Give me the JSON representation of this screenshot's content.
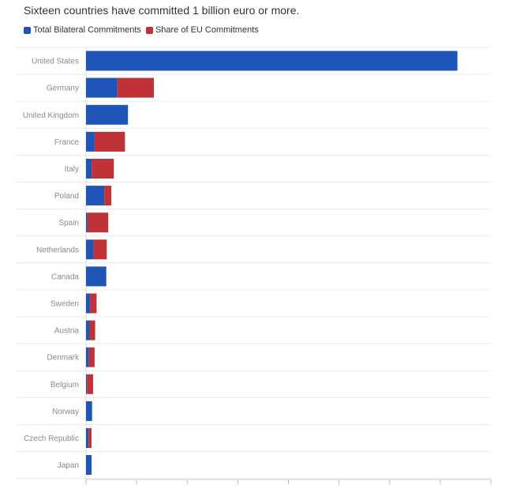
{
  "chart_data": {
    "type": "bar",
    "orientation": "horizontal",
    "stacked": true,
    "title": "Sixteen countries have committed 1 billion euro or more.",
    "categories": [
      "United States",
      "Germany",
      "United Kingdom",
      "France",
      "Italy",
      "Poland",
      "Spain",
      "Netherlands",
      "Canada",
      "Sweden",
      "Austria",
      "Denmark",
      "Belgium",
      "Norway",
      "Czech Republic",
      "Japan"
    ],
    "series": [
      {
        "name": "Total Bilateral Commitments",
        "color": "#1f55b8",
        "values": [
          73.4,
          6.2,
          8.3,
          1.7,
          1.1,
          3.6,
          0.3,
          1.5,
          4.0,
          0.8,
          0.7,
          0.6,
          0.2,
          1.2,
          0.5,
          1.1
        ]
      },
      {
        "name": "Share of EU Commitments",
        "color": "#bf3238",
        "values": [
          0,
          7.2,
          0,
          6.0,
          4.4,
          1.4,
          4.1,
          2.6,
          0,
          1.3,
          1.1,
          1.1,
          1.2,
          0,
          0.6,
          0
        ]
      }
    ],
    "xlim": [
      0,
      80
    ],
    "x_tick_step": 10,
    "show_x_tick_labels": false,
    "grid": true,
    "legend_position": "top-left"
  }
}
